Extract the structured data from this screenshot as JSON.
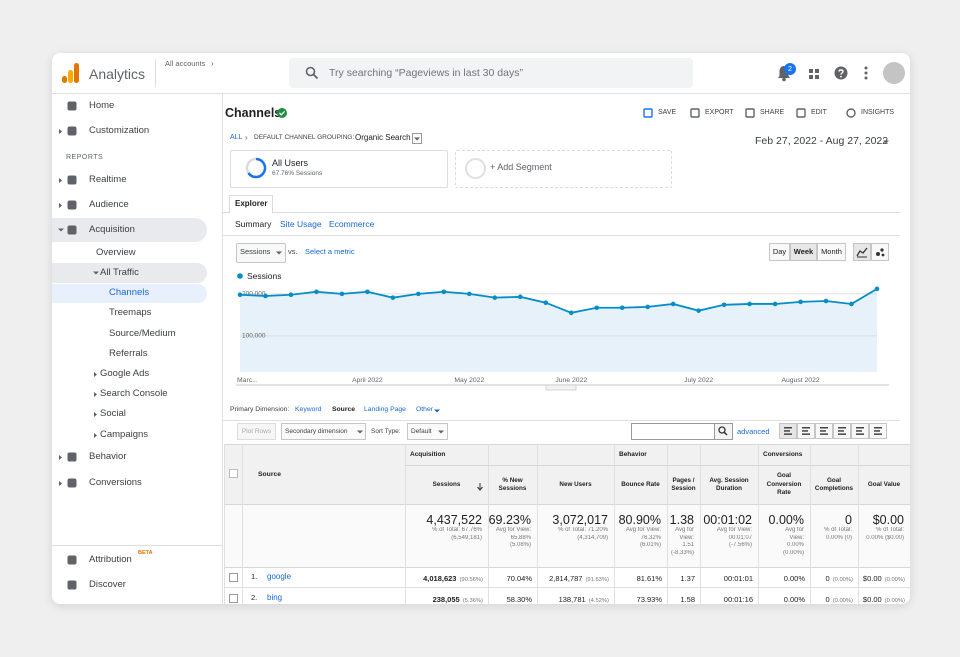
{
  "header": {
    "product": "Analytics",
    "account": "All accounts",
    "account_arrow": "›",
    "search_placeholder": "Try searching “Pageviews in last 30 days”",
    "notifications": "2"
  },
  "sidebar": {
    "items": [
      "Home",
      "Customization",
      "REPORTS",
      "Realtime",
      "Audience",
      "Acquisition",
      "Overview",
      "All Traffic",
      "Channels",
      "Treemaps",
      "Source/Medium",
      "Referrals",
      "Google Ads",
      "Search Console",
      "Social",
      "Campaigns",
      "Behavior",
      "Conversions",
      "Attribution",
      "Discover"
    ],
    "badge": "BETA"
  },
  "main": {
    "title": "Channels",
    "toolbar": [
      "SAVE",
      "EXPORT",
      "SHARE",
      "EDIT",
      "INSIGHTS"
    ],
    "breadcrumb": {
      "all": "ALL",
      "separator": "›",
      "grouping": "DEFAULT CHANNEL GROUPING:",
      "value": "Organic Search"
    },
    "date_range": "Feb 27, 2022 - Aug 27, 2022",
    "segment": {
      "name": "All Users",
      "detail": "67.76% Sessions",
      "add": "+ Add Segment"
    },
    "tab": "Explorer",
    "subtabs": [
      "Summary",
      "Site Usage",
      "Ecommerce"
    ],
    "metric": {
      "selected": "Sessions",
      "vs": "vs.",
      "select": "Select a metric"
    },
    "periods": [
      "Day",
      "Week",
      "Month"
    ],
    "dimension": {
      "label": "Primary Dimension:",
      "options": [
        "Keyword",
        "Source",
        "Landing Page",
        "Other"
      ]
    },
    "controls": {
      "plot_rows": "Plot Rows",
      "secondary": "Secondary dimension",
      "sort_label": "Sort Type:",
      "sort": "Default",
      "advanced": "advanced"
    }
  },
  "chart_data": {
    "type": "line",
    "categories": [
      "Marc...",
      null,
      null,
      null,
      null,
      "April 2022",
      null,
      null,
      null,
      "May 2022",
      null,
      null,
      null,
      "June 2022",
      null,
      null,
      null,
      null,
      "July 2022",
      null,
      null,
      null,
      "August 2022",
      null,
      null,
      null
    ],
    "series": [
      {
        "name": "Sessions",
        "color": "#058dc7",
        "values": [
          198000,
          195000,
          198000,
          205000,
          200000,
          205000,
          191000,
          200000,
          205000,
          200000,
          191000,
          193000,
          179000,
          155000,
          167000,
          167000,
          169000,
          176000,
          160000,
          174000,
          176000,
          176000,
          181000,
          183000,
          176000,
          212000
        ]
      }
    ],
    "ylim": [
      14000,
      214000
    ],
    "yticks": [
      {
        "value": 100000,
        "label": "100,000"
      },
      {
        "value": 200000,
        "label": "200,000"
      }
    ],
    "grid": true,
    "area": true
  },
  "table": {
    "groups": [
      "Acquisition",
      "Behavior",
      "Conversions"
    ],
    "columns": [
      "Source",
      "Sessions",
      "% New Sessions",
      "New Users",
      "Bounce Rate",
      "Pages / Session",
      "Avg. Session Duration",
      "Goal Conversion Rate",
      "Goal Completions",
      "Goal Value"
    ],
    "totals": [
      [
        "4,437,522",
        "% of Total: 67.76%",
        "(6,549,181)"
      ],
      [
        "69.23%",
        "Avg for View:",
        "65.88%",
        "(5.08%)"
      ],
      [
        "3,072,017",
        "% of Total: 71.20%",
        "(4,314,709)"
      ],
      [
        "80.90%",
        "Avg for View:",
        "76.32%",
        "(6.01%)"
      ],
      [
        "1.38",
        "Avg for",
        "View:",
        "1.51",
        "(-8.33%)"
      ],
      [
        "00:01:02",
        "Avg for View:",
        "00:01:07",
        "(-7.56%)"
      ],
      [
        "0.00%",
        "Avg for",
        "View:",
        "0.00%",
        "(0.00%)"
      ],
      [
        "0",
        "% of Total:",
        "0.00% (0)"
      ],
      [
        "$0.00",
        "% of Total:",
        "0.00% ($0.00)"
      ]
    ],
    "rows": [
      {
        "rank": "1.",
        "source": "google",
        "cells": [
          [
            "4,018,623",
            "(90.56%)"
          ],
          [
            "70.04%"
          ],
          [
            "2,814,787",
            "(91.63%)"
          ],
          [
            "81.61%"
          ],
          [
            "1.37"
          ],
          [
            "00:01:01"
          ],
          [
            "0.00%"
          ],
          [
            "0",
            "(0.00%)"
          ],
          [
            "$0.00",
            "(0.00%)"
          ]
        ]
      },
      {
        "rank": "2.",
        "source": "bing",
        "cells": [
          [
            "238,055",
            "(5.36%)"
          ],
          [
            "58.30%"
          ],
          [
            "138,781",
            "(4.52%)"
          ],
          [
            "73.93%"
          ],
          [
            "1.58"
          ],
          [
            "00:01:16"
          ],
          [
            "0.00%"
          ],
          [
            "0",
            "(0.00%)"
          ],
          [
            "$0.00",
            "(0.00%)"
          ]
        ]
      }
    ]
  }
}
